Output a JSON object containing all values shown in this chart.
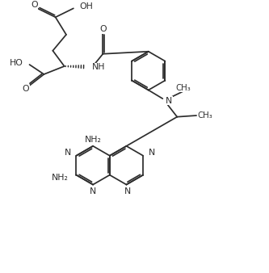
{
  "bg": "#ffffff",
  "lc": "#2d2d2d",
  "fs": 7.8,
  "lw": 1.25,
  "figsize": [
    3.33,
    3.38
  ],
  "dpi": 100,
  "xlim": [
    0,
    10
  ],
  "ylim": [
    0,
    10.15
  ]
}
